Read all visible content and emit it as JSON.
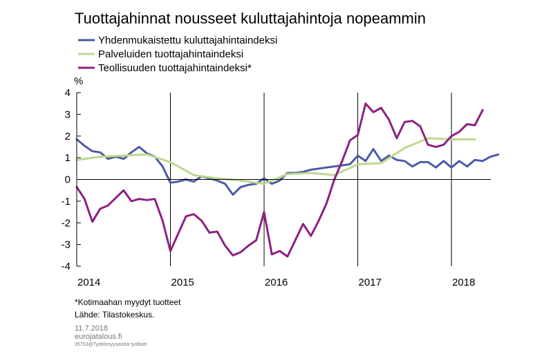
{
  "chart_data": {
    "type": "line",
    "title": "Tuottajahinnat nousseet kuluttajahintoja nopeammin",
    "ylabel": "%",
    "ylim": [
      -4,
      4
    ],
    "yticks": [
      4,
      3,
      2,
      1,
      0,
      -1,
      -2,
      -3,
      -4
    ],
    "xlim": [
      2014.0,
      2018.42
    ],
    "xticks": [
      {
        "x": 2014.0,
        "label": "2014"
      },
      {
        "x": 2015.0,
        "label": "2015"
      },
      {
        "x": 2016.0,
        "label": "2016"
      },
      {
        "x": 2017.0,
        "label": "2017"
      },
      {
        "x": 2018.0,
        "label": "2018"
      }
    ],
    "grid": false,
    "legend_position": "top-left",
    "series": [
      {
        "name": "Yhdenmukaistettu kuluttajahintaindeksi",
        "color": "#4a5aa5",
        "start": 2014.0,
        "values": [
          1.85,
          1.55,
          1.3,
          1.25,
          0.95,
          1.05,
          0.95,
          1.25,
          1.5,
          1.2,
          1.05,
          0.6,
          -0.15,
          -0.1,
          0.0,
          -0.1,
          0.15,
          0.05,
          -0.05,
          -0.2,
          -0.7,
          -0.35,
          -0.25,
          -0.2,
          0.05,
          -0.2,
          -0.05,
          0.3,
          0.3,
          0.35,
          0.45,
          0.5,
          0.55,
          0.6,
          0.65,
          0.7,
          1.1,
          0.85,
          1.4,
          0.85,
          1.1,
          0.9,
          0.85,
          0.6,
          0.8,
          0.8,
          0.55,
          0.85,
          0.55,
          0.85,
          0.6,
          0.9,
          0.85,
          1.05,
          1.15
        ]
      },
      {
        "name": "Palveluiden tuottajahintaindeksi",
        "color": "#bdd98d",
        "start": 2014.0,
        "step": 0.25,
        "values": [
          0.9,
          1.05,
          1.1,
          1.15,
          0.8,
          0.2,
          0.05,
          -0.05,
          -0.2,
          0.25,
          0.3,
          0.2,
          0.7,
          0.75,
          1.45,
          1.9,
          1.85,
          1.85
        ]
      },
      {
        "name": "Teollisuuden tuottajahintaindeksi*",
        "color": "#8c2082",
        "start": 2014.0,
        "values": [
          -0.35,
          -0.9,
          -1.95,
          -1.35,
          -1.2,
          -0.85,
          -0.5,
          -1.0,
          -0.9,
          -0.95,
          -0.9,
          -1.9,
          -3.3,
          -2.5,
          -1.7,
          -1.6,
          -1.9,
          -2.45,
          -2.4,
          -3.05,
          -3.5,
          -3.35,
          -3.05,
          -2.8,
          -1.5,
          -3.45,
          -3.3,
          -3.55,
          -2.8,
          -2.05,
          -2.6,
          -1.9,
          -1.1,
          0.0,
          0.85,
          1.8,
          2.05,
          3.5,
          3.1,
          3.3,
          2.75,
          1.9,
          2.65,
          2.7,
          2.45,
          1.6,
          1.5,
          1.6,
          2.0,
          2.2,
          2.55,
          2.5,
          3.2
        ]
      }
    ]
  },
  "notes": {
    "footnote": "*Kotimaahan  myydyt tuotteet",
    "source": "Lähde:  Tilastokeskus.",
    "date": "11.7.2018",
    "site": "eurojatalous.fi",
    "code": "35753@Työttömyysasteä työlliset"
  }
}
